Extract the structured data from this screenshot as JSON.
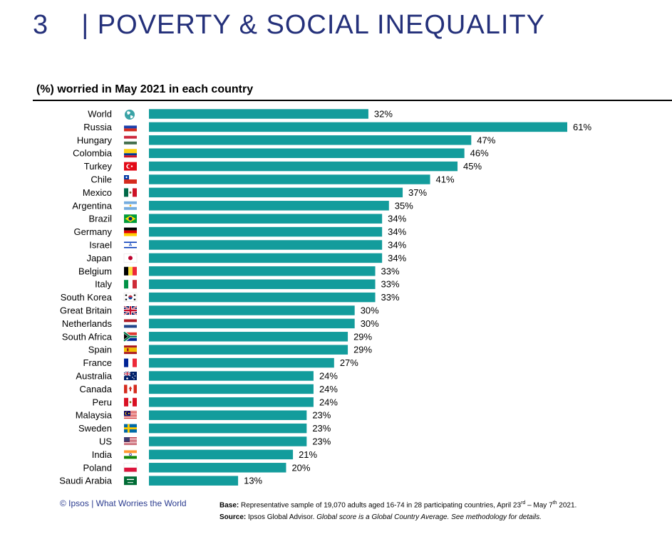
{
  "page": {
    "title": "3    | POVERTY & SOCIAL INEQUALITY",
    "subtitle": "(%) worried in May 2021 in each country"
  },
  "colors": {
    "bar": "#139c9c",
    "title": "#24307a",
    "footer_link": "#2a3b8f"
  },
  "chart_data": {
    "type": "bar",
    "orientation": "horizontal",
    "title": "(%) worried in May 2021 in each country",
    "xlabel": "",
    "ylabel": "",
    "xlim": [
      0,
      61
    ],
    "grid": false,
    "categories": [
      "World",
      "Russia",
      "Hungary",
      "Colombia",
      "Turkey",
      "Chile",
      "Mexico",
      "Argentina",
      "Brazil",
      "Germany",
      "Israel",
      "Japan",
      "Belgium",
      "Italy",
      "South Korea",
      "Great Britain",
      "Netherlands",
      "South Africa",
      "Spain",
      "France",
      "Australia",
      "Canada",
      "Peru",
      "Malaysia",
      "Sweden",
      "US",
      "India",
      "Poland",
      "Saudi Arabia"
    ],
    "values": [
      32,
      61,
      47,
      46,
      45,
      41,
      37,
      35,
      34,
      34,
      34,
      34,
      33,
      33,
      33,
      30,
      30,
      29,
      29,
      27,
      24,
      24,
      24,
      23,
      23,
      23,
      21,
      20,
      13
    ],
    "value_labels": [
      "32%",
      "61%",
      "47%",
      "46%",
      "45%",
      "41%",
      "37%",
      "35%",
      "34%",
      "34%",
      "34%",
      "34%",
      "33%",
      "33%",
      "33%",
      "30%",
      "30%",
      "29%",
      "29%",
      "27%",
      "24%",
      "24%",
      "24%",
      "23%",
      "23%",
      "23%",
      "21%",
      "20%",
      "13%"
    ],
    "icons": [
      "globe-icon",
      "russia-flag-icon",
      "hungary-flag-icon",
      "colombia-flag-icon",
      "turkey-flag-icon",
      "chile-flag-icon",
      "mexico-flag-icon",
      "argentina-flag-icon",
      "brazil-flag-icon",
      "germany-flag-icon",
      "israel-flag-icon",
      "japan-flag-icon",
      "belgium-flag-icon",
      "italy-flag-icon",
      "south-korea-flag-icon",
      "great-britain-flag-icon",
      "netherlands-flag-icon",
      "south-africa-flag-icon",
      "spain-flag-icon",
      "france-flag-icon",
      "australia-flag-icon",
      "canada-flag-icon",
      "peru-flag-icon",
      "malaysia-flag-icon",
      "sweden-flag-icon",
      "us-flag-icon",
      "india-flag-icon",
      "poland-flag-icon",
      "saudi-arabia-flag-icon"
    ]
  },
  "footer": {
    "credit": "© Ipsos | What Worries the World",
    "base_label": "Base:",
    "base_text_1": " Representative sample of 19,070 adults aged 16-74 in 28 participating countries, April 23",
    "base_sup_1": "rd",
    "base_text_2": " – May 7",
    "base_sup_2": "th",
    "base_text_3": " 2021.",
    "source_label": "Source:",
    "source_text": " Ipsos Global Advisor. ",
    "source_note": "Global score is a Global Country Average. See methodology for details."
  }
}
